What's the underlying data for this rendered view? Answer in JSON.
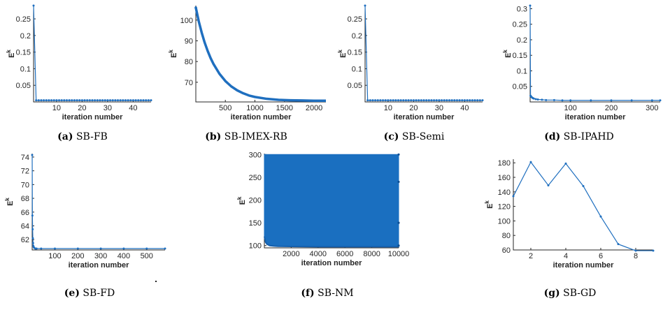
{
  "panel_labels": [
    "(a)",
    "(b)",
    "(c)",
    "(d)",
    "(e)",
    "(f)",
    "(g)"
  ],
  "chart_data": [
    {
      "type": "line",
      "caption": "SB-FB",
      "xlabel": "iteration number",
      "ylabel": "E^k",
      "xlim": [
        1,
        47
      ],
      "ylim": [
        0,
        0.29
      ],
      "xticks": [
        10,
        20,
        30,
        40
      ],
      "xtick_labels": [
        "10",
        "20",
        "30",
        "40"
      ],
      "yticks": [
        0.05,
        0.1,
        0.15,
        0.2,
        0.25
      ],
      "ytick_labels": [
        "0.05",
        "0.1",
        "0.15",
        "0.2",
        "0.25"
      ],
      "color": "#1f6fbf",
      "series": [
        {
          "x": [
            1,
            2,
            3,
            4,
            5,
            6,
            7,
            8,
            9,
            10,
            11,
            12,
            13,
            14,
            15,
            16,
            17,
            18,
            19,
            20,
            21,
            22,
            23,
            24,
            25,
            26,
            27,
            28,
            29,
            30,
            31,
            32,
            33,
            34,
            35,
            36,
            37,
            38,
            39,
            40,
            41,
            42,
            43,
            44,
            45,
            46,
            47
          ],
          "y": [
            0.29,
            0.005,
            0.005,
            0.005,
            0.005,
            0.005,
            0.005,
            0.005,
            0.005,
            0.005,
            0.005,
            0.005,
            0.005,
            0.005,
            0.005,
            0.005,
            0.005,
            0.005,
            0.005,
            0.005,
            0.005,
            0.005,
            0.005,
            0.005,
            0.005,
            0.005,
            0.005,
            0.005,
            0.005,
            0.005,
            0.005,
            0.005,
            0.005,
            0.005,
            0.005,
            0.005,
            0.005,
            0.005,
            0.005,
            0.005,
            0.005,
            0.005,
            0.005,
            0.005,
            0.005,
            0.005,
            0.005
          ]
        }
      ]
    },
    {
      "type": "line",
      "caption": "SB-IMEX-RB",
      "xlabel": "iteration number",
      "ylabel": "E^k",
      "xlim": [
        1,
        2200
      ],
      "ylim": [
        60.5,
        107
      ],
      "xticks": [
        500,
        1000,
        1500,
        2000
      ],
      "xtick_labels": [
        "500",
        "1000",
        "1500",
        "2000"
      ],
      "yticks": [
        70,
        80,
        90,
        100
      ],
      "ytick_labels": [
        "70",
        "80",
        "90",
        "100"
      ],
      "color": "#1f6fbf",
      "series": [
        {
          "x": [
            1,
            50,
            100,
            150,
            200,
            250,
            300,
            400,
            500,
            600,
            700,
            800,
            900,
            1000,
            1200,
            1400,
            1600,
            1800,
            2000,
            2200
          ],
          "y": [
            106,
            99.5,
            94,
            89.2,
            85.2,
            81.7,
            78.8,
            74.1,
            70.6,
            68.0,
            66.1,
            64.7,
            63.6,
            62.9,
            62.0,
            61.5,
            61.3,
            61.2,
            61.1,
            61.1
          ]
        }
      ]
    },
    {
      "type": "line",
      "caption": "SB-Semi",
      "xlabel": "iteration number",
      "ylabel": "E^k",
      "xlim": [
        1,
        47
      ],
      "ylim": [
        0,
        0.29
      ],
      "xticks": [
        10,
        20,
        30,
        40
      ],
      "xtick_labels": [
        "10",
        "20",
        "30",
        "40"
      ],
      "yticks": [
        0.05,
        0.1,
        0.15,
        0.2,
        0.25
      ],
      "ytick_labels": [
        "0.05",
        "0.1",
        "0.15",
        "0.2",
        "0.25"
      ],
      "color": "#1f6fbf",
      "series": [
        {
          "x": [
            1,
            2,
            3,
            4,
            5,
            6,
            7,
            8,
            9,
            10,
            11,
            12,
            13,
            14,
            15,
            16,
            17,
            18,
            19,
            20,
            21,
            22,
            23,
            24,
            25,
            26,
            27,
            28,
            29,
            30,
            31,
            32,
            33,
            34,
            35,
            36,
            37,
            38,
            39,
            40,
            41,
            42,
            43,
            44,
            45,
            46,
            47
          ],
          "y": [
            0.29,
            0.005,
            0.005,
            0.005,
            0.005,
            0.005,
            0.005,
            0.005,
            0.005,
            0.005,
            0.005,
            0.005,
            0.005,
            0.005,
            0.005,
            0.005,
            0.005,
            0.005,
            0.005,
            0.005,
            0.005,
            0.005,
            0.005,
            0.005,
            0.005,
            0.005,
            0.005,
            0.005,
            0.005,
            0.005,
            0.005,
            0.005,
            0.005,
            0.005,
            0.005,
            0.005,
            0.005,
            0.005,
            0.005,
            0.005,
            0.005,
            0.005,
            0.005,
            0.005,
            0.005,
            0.005,
            0.005
          ]
        }
      ]
    },
    {
      "type": "line",
      "caption": "SB-IPAHD",
      "xlabel": "iteration number",
      "ylabel": "E^k",
      "xlim": [
        1,
        320
      ],
      "ylim": [
        0,
        0.31
      ],
      "xticks": [
        100,
        200,
        300
      ],
      "xtick_labels": [
        "100",
        "200",
        "300"
      ],
      "yticks": [
        0.05,
        0.1,
        0.15,
        0.2,
        0.25,
        0.3
      ],
      "ytick_labels": [
        "0.05",
        "0.1",
        "0.15",
        "0.2",
        "0.25",
        "0.3"
      ],
      "color": "#1f6fbf",
      "series": [
        {
          "x": [
            1,
            2,
            3,
            4,
            6,
            8,
            10,
            15,
            20,
            30,
            40,
            60,
            80,
            100,
            150,
            200,
            250,
            300,
            320
          ],
          "y": [
            0.31,
            0.02,
            0.018,
            0.016,
            0.014,
            0.012,
            0.011,
            0.009,
            0.008,
            0.007,
            0.006,
            0.006,
            0.005,
            0.005,
            0.005,
            0.005,
            0.005,
            0.005,
            0.005
          ]
        }
      ]
    },
    {
      "type": "line",
      "caption": "SB-FD",
      "xlabel": "iteration number",
      "ylabel": "E^k",
      "xlim": [
        1,
        580
      ],
      "ylim": [
        60.5,
        74.5
      ],
      "xticks": [
        100,
        200,
        300,
        400,
        500
      ],
      "xtick_labels": [
        "100",
        "200",
        "300",
        "400",
        "500"
      ],
      "yticks": [
        62,
        64,
        66,
        68,
        70,
        72,
        74
      ],
      "ytick_labels": [
        "62",
        "64",
        "66",
        "68",
        "70",
        "72",
        "74"
      ],
      "color": "#1f6fbf",
      "series": [
        {
          "x": [
            1,
            2,
            3,
            4,
            5,
            6,
            8,
            10,
            15,
            20,
            40,
            100,
            200,
            300,
            400,
            500,
            580
          ],
          "y": [
            74.3,
            65.5,
            63.5,
            62.2,
            61.5,
            61.1,
            60.9,
            60.8,
            60.7,
            60.7,
            60.7,
            60.7,
            60.7,
            60.7,
            60.7,
            60.7,
            60.7
          ]
        }
      ]
    },
    {
      "type": "area",
      "caption": "SB-NM",
      "xlabel": "iteration number",
      "ylabel": "E^k",
      "xlim": [
        1,
        10000
      ],
      "ylim": [
        95,
        302
      ],
      "xticks": [
        2000,
        4000,
        6000,
        8000,
        10000
      ],
      "xtick_labels": [
        "2000",
        "4000",
        "6000",
        "8000",
        "10000"
      ],
      "yticks": [
        100,
        150,
        200,
        250,
        300
      ],
      "ytick_labels": [
        "100",
        "150",
        "200",
        "250",
        "300"
      ],
      "color": "#1a6fc0",
      "series": [
        {
          "x": [
            1,
            100,
            200,
            400,
            700,
            1000,
            2000,
            4000,
            6000,
            8000,
            10000
          ],
          "lower": [
            120,
            107,
            103,
            100,
            99,
            98.5,
            98,
            97.5,
            97.5,
            97.5,
            97.5
          ],
          "upper": [
            300,
            300,
            300,
            300,
            300,
            300,
            300,
            300,
            300,
            300,
            300
          ]
        }
      ]
    },
    {
      "type": "line",
      "caption": "SB-GD",
      "xlabel": "iteration number",
      "ylabel": "E^k",
      "xlim": [
        1,
        9
      ],
      "ylim": [
        60,
        185
      ],
      "xticks": [
        2,
        4,
        6,
        8
      ],
      "xtick_labels": [
        "2",
        "4",
        "6",
        "8"
      ],
      "yticks": [
        60,
        80,
        100,
        120,
        140,
        160,
        180
      ],
      "ytick_labels": [
        "60",
        "80",
        "100",
        "120",
        "140",
        "160",
        "180"
      ],
      "color": "#1f6fbf",
      "series": [
        {
          "x": [
            1,
            2,
            3,
            4,
            5,
            6,
            7,
            8,
            9
          ],
          "y": [
            134,
            181,
            149,
            179,
            148,
            106,
            68,
            59,
            59
          ]
        }
      ]
    }
  ]
}
